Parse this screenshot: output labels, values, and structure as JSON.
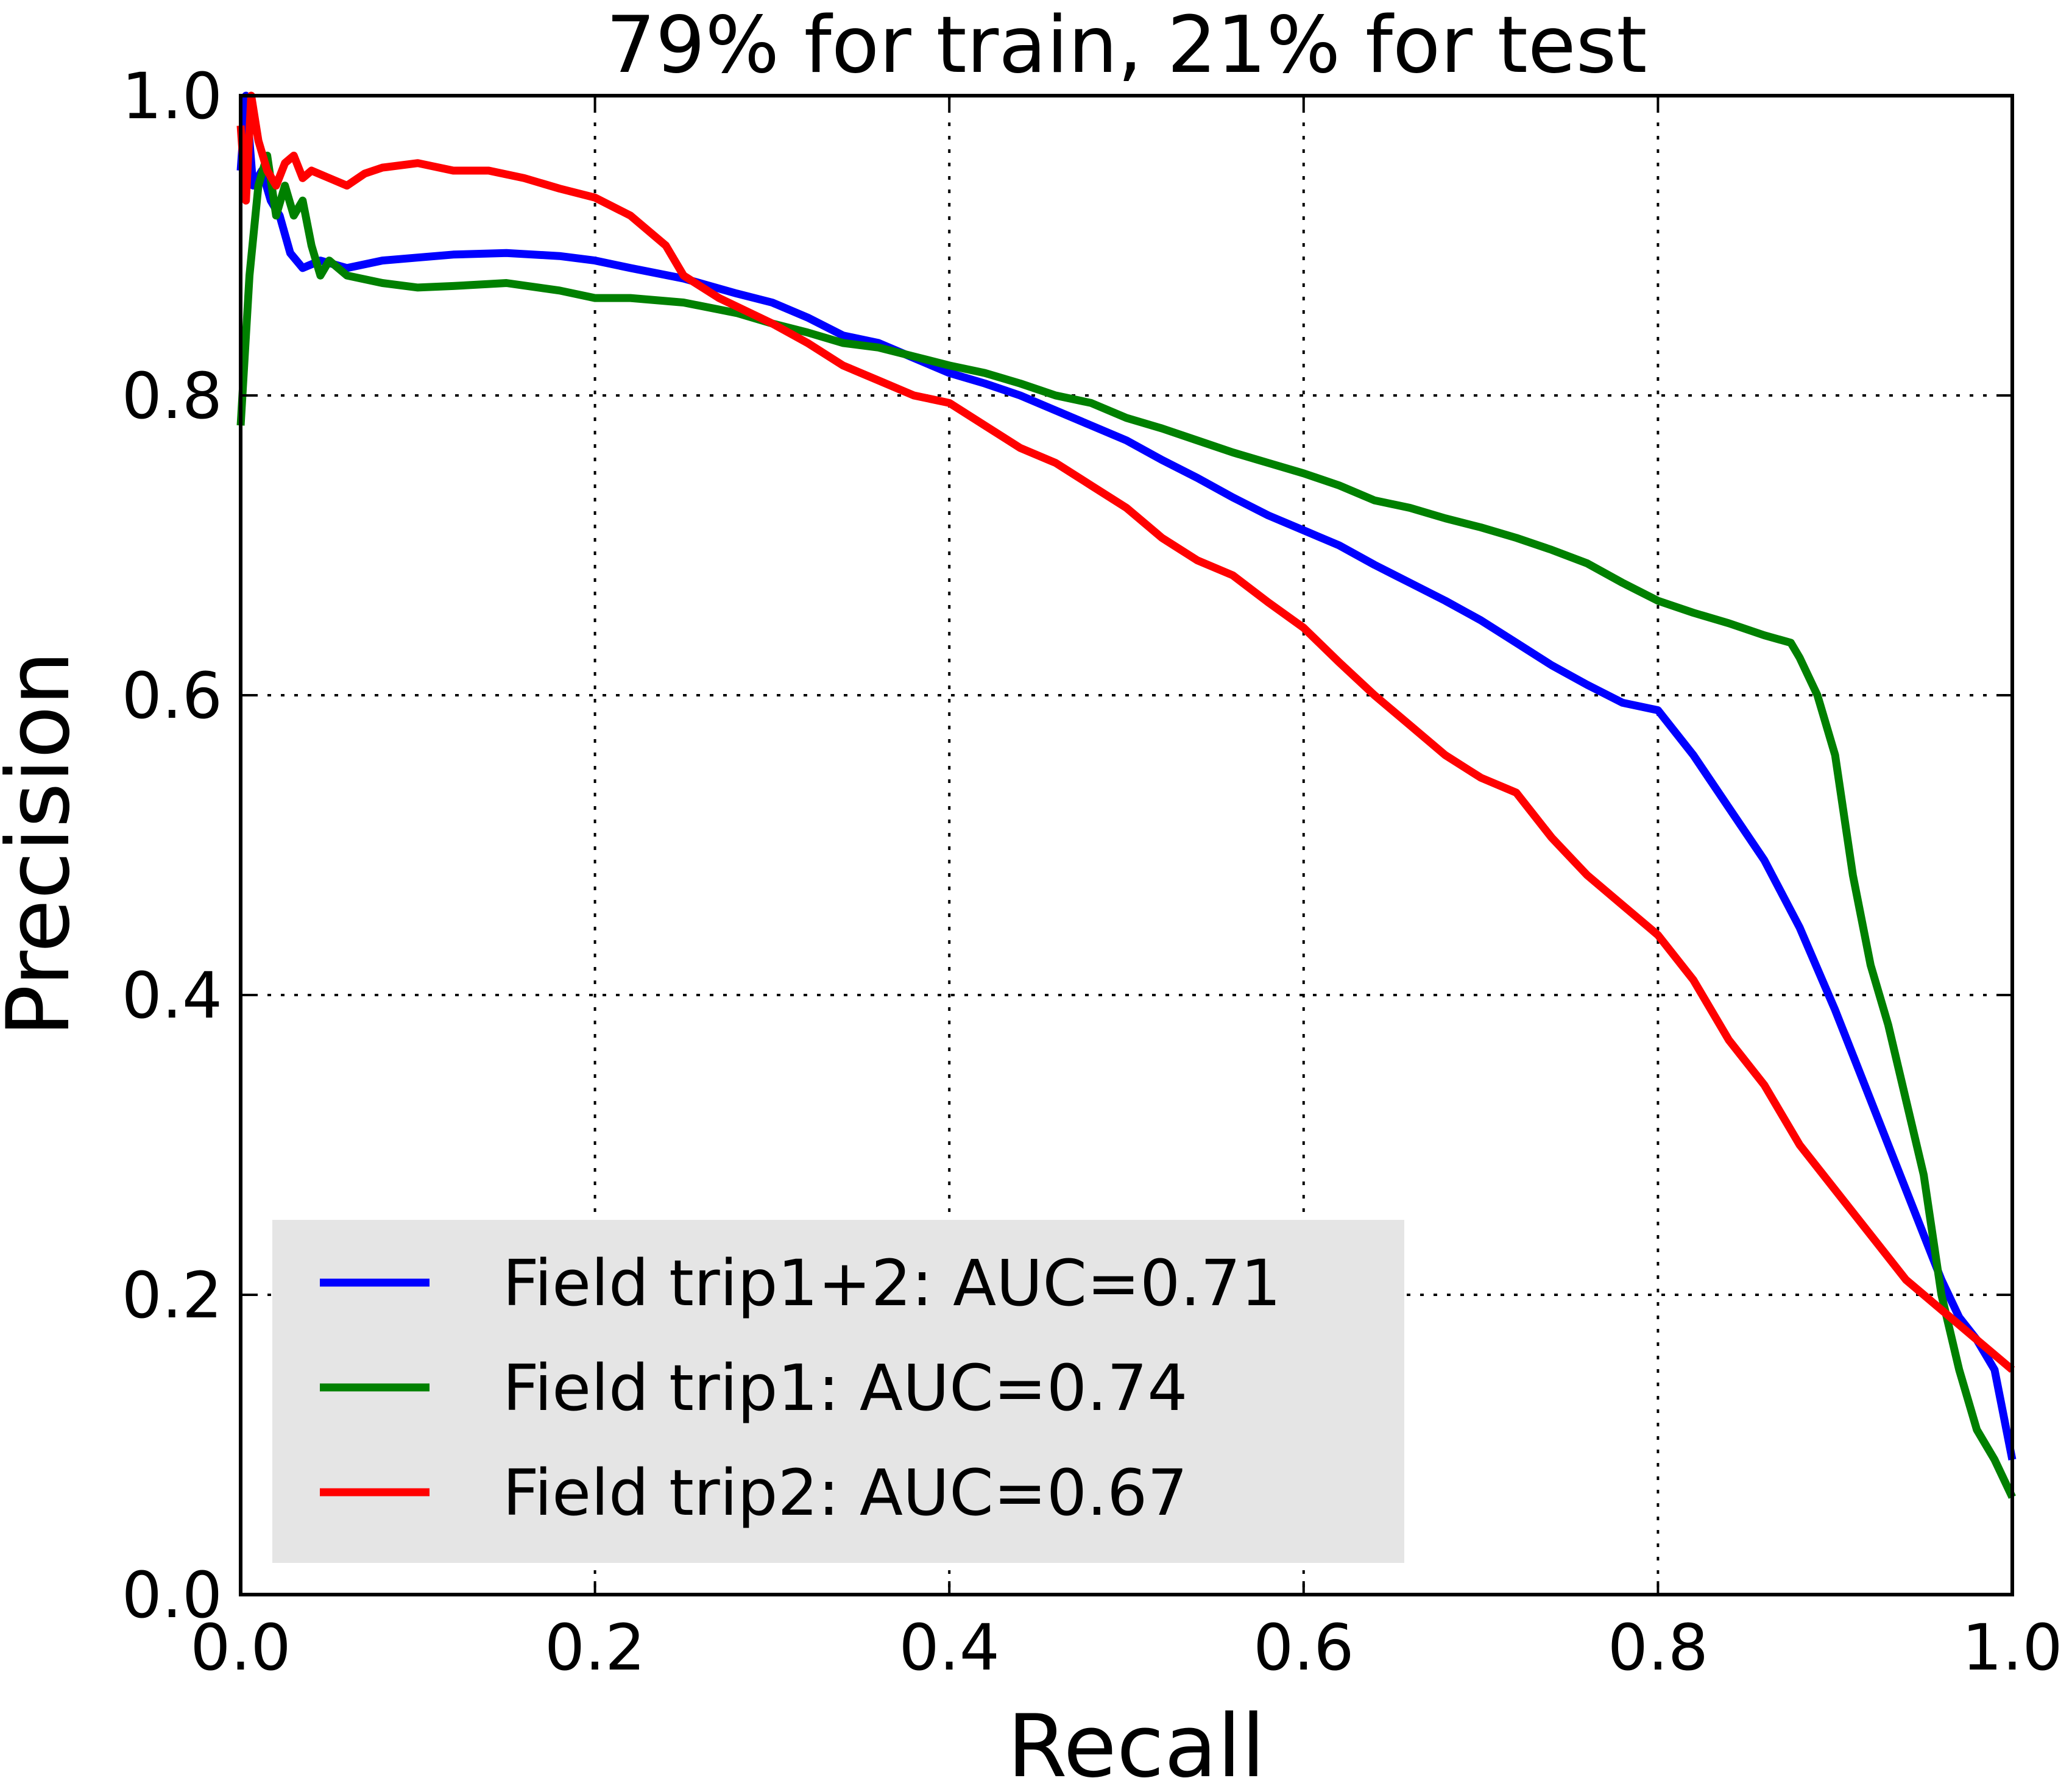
{
  "chart_data": {
    "type": "line",
    "title": "79% for train, 21% for test",
    "xlabel": "Recall",
    "ylabel": "Precision",
    "xlim": [
      0.0,
      1.0
    ],
    "ylim": [
      0.0,
      1.0
    ],
    "grid": true,
    "legend_position": "lower-left",
    "xticks": [
      0.0,
      0.2,
      0.4,
      0.6,
      0.8,
      1.0
    ],
    "yticks": [
      0.0,
      0.2,
      0.4,
      0.6,
      0.8,
      1.0
    ],
    "xtick_labels": [
      "0.0",
      "0.2",
      "0.4",
      "0.6",
      "0.8",
      "1.0"
    ],
    "ytick_labels": [
      "0.0",
      "0.2",
      "0.4",
      "0.6",
      "0.8",
      "1.0"
    ],
    "series": [
      {
        "name": "Field trip1+2: AUC=0.71",
        "color": "#0000ff",
        "points": [
          [
            0.0,
            0.95
          ],
          [
            0.003,
            1.0
          ],
          [
            0.007,
            0.94
          ],
          [
            0.012,
            0.95
          ],
          [
            0.017,
            0.93
          ],
          [
            0.022,
            0.92
          ],
          [
            0.028,
            0.895
          ],
          [
            0.035,
            0.885
          ],
          [
            0.045,
            0.89
          ],
          [
            0.06,
            0.885
          ],
          [
            0.08,
            0.89
          ],
          [
            0.1,
            0.892
          ],
          [
            0.12,
            0.894
          ],
          [
            0.15,
            0.895
          ],
          [
            0.18,
            0.893
          ],
          [
            0.2,
            0.89
          ],
          [
            0.22,
            0.885
          ],
          [
            0.25,
            0.878
          ],
          [
            0.28,
            0.868
          ],
          [
            0.3,
            0.862
          ],
          [
            0.32,
            0.852
          ],
          [
            0.34,
            0.84
          ],
          [
            0.36,
            0.835
          ],
          [
            0.38,
            0.825
          ],
          [
            0.4,
            0.815
          ],
          [
            0.42,
            0.808
          ],
          [
            0.44,
            0.8
          ],
          [
            0.46,
            0.79
          ],
          [
            0.48,
            0.78
          ],
          [
            0.5,
            0.77
          ],
          [
            0.52,
            0.757
          ],
          [
            0.54,
            0.745
          ],
          [
            0.56,
            0.732
          ],
          [
            0.58,
            0.72
          ],
          [
            0.6,
            0.71
          ],
          [
            0.62,
            0.7
          ],
          [
            0.64,
            0.687
          ],
          [
            0.66,
            0.675
          ],
          [
            0.68,
            0.663
          ],
          [
            0.7,
            0.65
          ],
          [
            0.72,
            0.635
          ],
          [
            0.74,
            0.62
          ],
          [
            0.76,
            0.607
          ],
          [
            0.78,
            0.595
          ],
          [
            0.8,
            0.59
          ],
          [
            0.82,
            0.56
          ],
          [
            0.84,
            0.525
          ],
          [
            0.86,
            0.49
          ],
          [
            0.88,
            0.445
          ],
          [
            0.9,
            0.39
          ],
          [
            0.92,
            0.33
          ],
          [
            0.94,
            0.27
          ],
          [
            0.96,
            0.21
          ],
          [
            0.97,
            0.185
          ],
          [
            0.98,
            0.17
          ],
          [
            0.99,
            0.15
          ],
          [
            1.0,
            0.09
          ]
        ]
      },
      {
        "name": "Field trip1: AUC=0.74",
        "color": "#008000",
        "points": [
          [
            0.0,
            0.78
          ],
          [
            0.005,
            0.88
          ],
          [
            0.01,
            0.94
          ],
          [
            0.015,
            0.96
          ],
          [
            0.02,
            0.92
          ],
          [
            0.025,
            0.94
          ],
          [
            0.03,
            0.92
          ],
          [
            0.035,
            0.93
          ],
          [
            0.04,
            0.9
          ],
          [
            0.045,
            0.88
          ],
          [
            0.05,
            0.89
          ],
          [
            0.06,
            0.88
          ],
          [
            0.08,
            0.875
          ],
          [
            0.1,
            0.872
          ],
          [
            0.12,
            0.873
          ],
          [
            0.15,
            0.875
          ],
          [
            0.18,
            0.87
          ],
          [
            0.2,
            0.865
          ],
          [
            0.22,
            0.865
          ],
          [
            0.25,
            0.862
          ],
          [
            0.28,
            0.855
          ],
          [
            0.3,
            0.848
          ],
          [
            0.32,
            0.842
          ],
          [
            0.34,
            0.835
          ],
          [
            0.36,
            0.832
          ],
          [
            0.38,
            0.826
          ],
          [
            0.4,
            0.82
          ],
          [
            0.42,
            0.815
          ],
          [
            0.44,
            0.808
          ],
          [
            0.46,
            0.8
          ],
          [
            0.48,
            0.795
          ],
          [
            0.5,
            0.785
          ],
          [
            0.52,
            0.778
          ],
          [
            0.54,
            0.77
          ],
          [
            0.56,
            0.762
          ],
          [
            0.58,
            0.755
          ],
          [
            0.6,
            0.748
          ],
          [
            0.62,
            0.74
          ],
          [
            0.64,
            0.73
          ],
          [
            0.66,
            0.725
          ],
          [
            0.68,
            0.718
          ],
          [
            0.7,
            0.712
          ],
          [
            0.72,
            0.705
          ],
          [
            0.74,
            0.697
          ],
          [
            0.76,
            0.688
          ],
          [
            0.78,
            0.675
          ],
          [
            0.8,
            0.663
          ],
          [
            0.82,
            0.655
          ],
          [
            0.84,
            0.648
          ],
          [
            0.86,
            0.64
          ],
          [
            0.875,
            0.635
          ],
          [
            0.88,
            0.625
          ],
          [
            0.89,
            0.6
          ],
          [
            0.9,
            0.56
          ],
          [
            0.91,
            0.48
          ],
          [
            0.92,
            0.42
          ],
          [
            0.93,
            0.38
          ],
          [
            0.94,
            0.33
          ],
          [
            0.95,
            0.28
          ],
          [
            0.96,
            0.2
          ],
          [
            0.97,
            0.15
          ],
          [
            0.98,
            0.11
          ],
          [
            0.99,
            0.09
          ],
          [
            1.0,
            0.065
          ]
        ]
      },
      {
        "name": "Field trip2: AUC=0.67",
        "color": "#ff0000",
        "points": [
          [
            0.0,
            0.98
          ],
          [
            0.003,
            0.93
          ],
          [
            0.006,
            1.0
          ],
          [
            0.01,
            0.97
          ],
          [
            0.015,
            0.95
          ],
          [
            0.02,
            0.94
          ],
          [
            0.025,
            0.955
          ],
          [
            0.03,
            0.96
          ],
          [
            0.035,
            0.945
          ],
          [
            0.04,
            0.95
          ],
          [
            0.05,
            0.945
          ],
          [
            0.06,
            0.94
          ],
          [
            0.07,
            0.948
          ],
          [
            0.08,
            0.952
          ],
          [
            0.1,
            0.955
          ],
          [
            0.12,
            0.95
          ],
          [
            0.14,
            0.95
          ],
          [
            0.16,
            0.945
          ],
          [
            0.18,
            0.938
          ],
          [
            0.2,
            0.932
          ],
          [
            0.22,
            0.92
          ],
          [
            0.24,
            0.9
          ],
          [
            0.25,
            0.88
          ],
          [
            0.27,
            0.865
          ],
          [
            0.3,
            0.848
          ],
          [
            0.32,
            0.835
          ],
          [
            0.34,
            0.82
          ],
          [
            0.36,
            0.81
          ],
          [
            0.38,
            0.8
          ],
          [
            0.4,
            0.795
          ],
          [
            0.42,
            0.78
          ],
          [
            0.44,
            0.765
          ],
          [
            0.46,
            0.755
          ],
          [
            0.48,
            0.74
          ],
          [
            0.5,
            0.725
          ],
          [
            0.52,
            0.705
          ],
          [
            0.54,
            0.69
          ],
          [
            0.56,
            0.68
          ],
          [
            0.58,
            0.662
          ],
          [
            0.6,
            0.645
          ],
          [
            0.62,
            0.622
          ],
          [
            0.64,
            0.6
          ],
          [
            0.66,
            0.58
          ],
          [
            0.68,
            0.56
          ],
          [
            0.7,
            0.545
          ],
          [
            0.72,
            0.535
          ],
          [
            0.74,
            0.505
          ],
          [
            0.76,
            0.48
          ],
          [
            0.78,
            0.46
          ],
          [
            0.8,
            0.44
          ],
          [
            0.82,
            0.41
          ],
          [
            0.84,
            0.37
          ],
          [
            0.86,
            0.34
          ],
          [
            0.88,
            0.3
          ],
          [
            0.9,
            0.27
          ],
          [
            0.92,
            0.24
          ],
          [
            0.94,
            0.21
          ],
          [
            0.96,
            0.19
          ],
          [
            0.98,
            0.17
          ],
          [
            1.0,
            0.15
          ]
        ]
      }
    ]
  }
}
